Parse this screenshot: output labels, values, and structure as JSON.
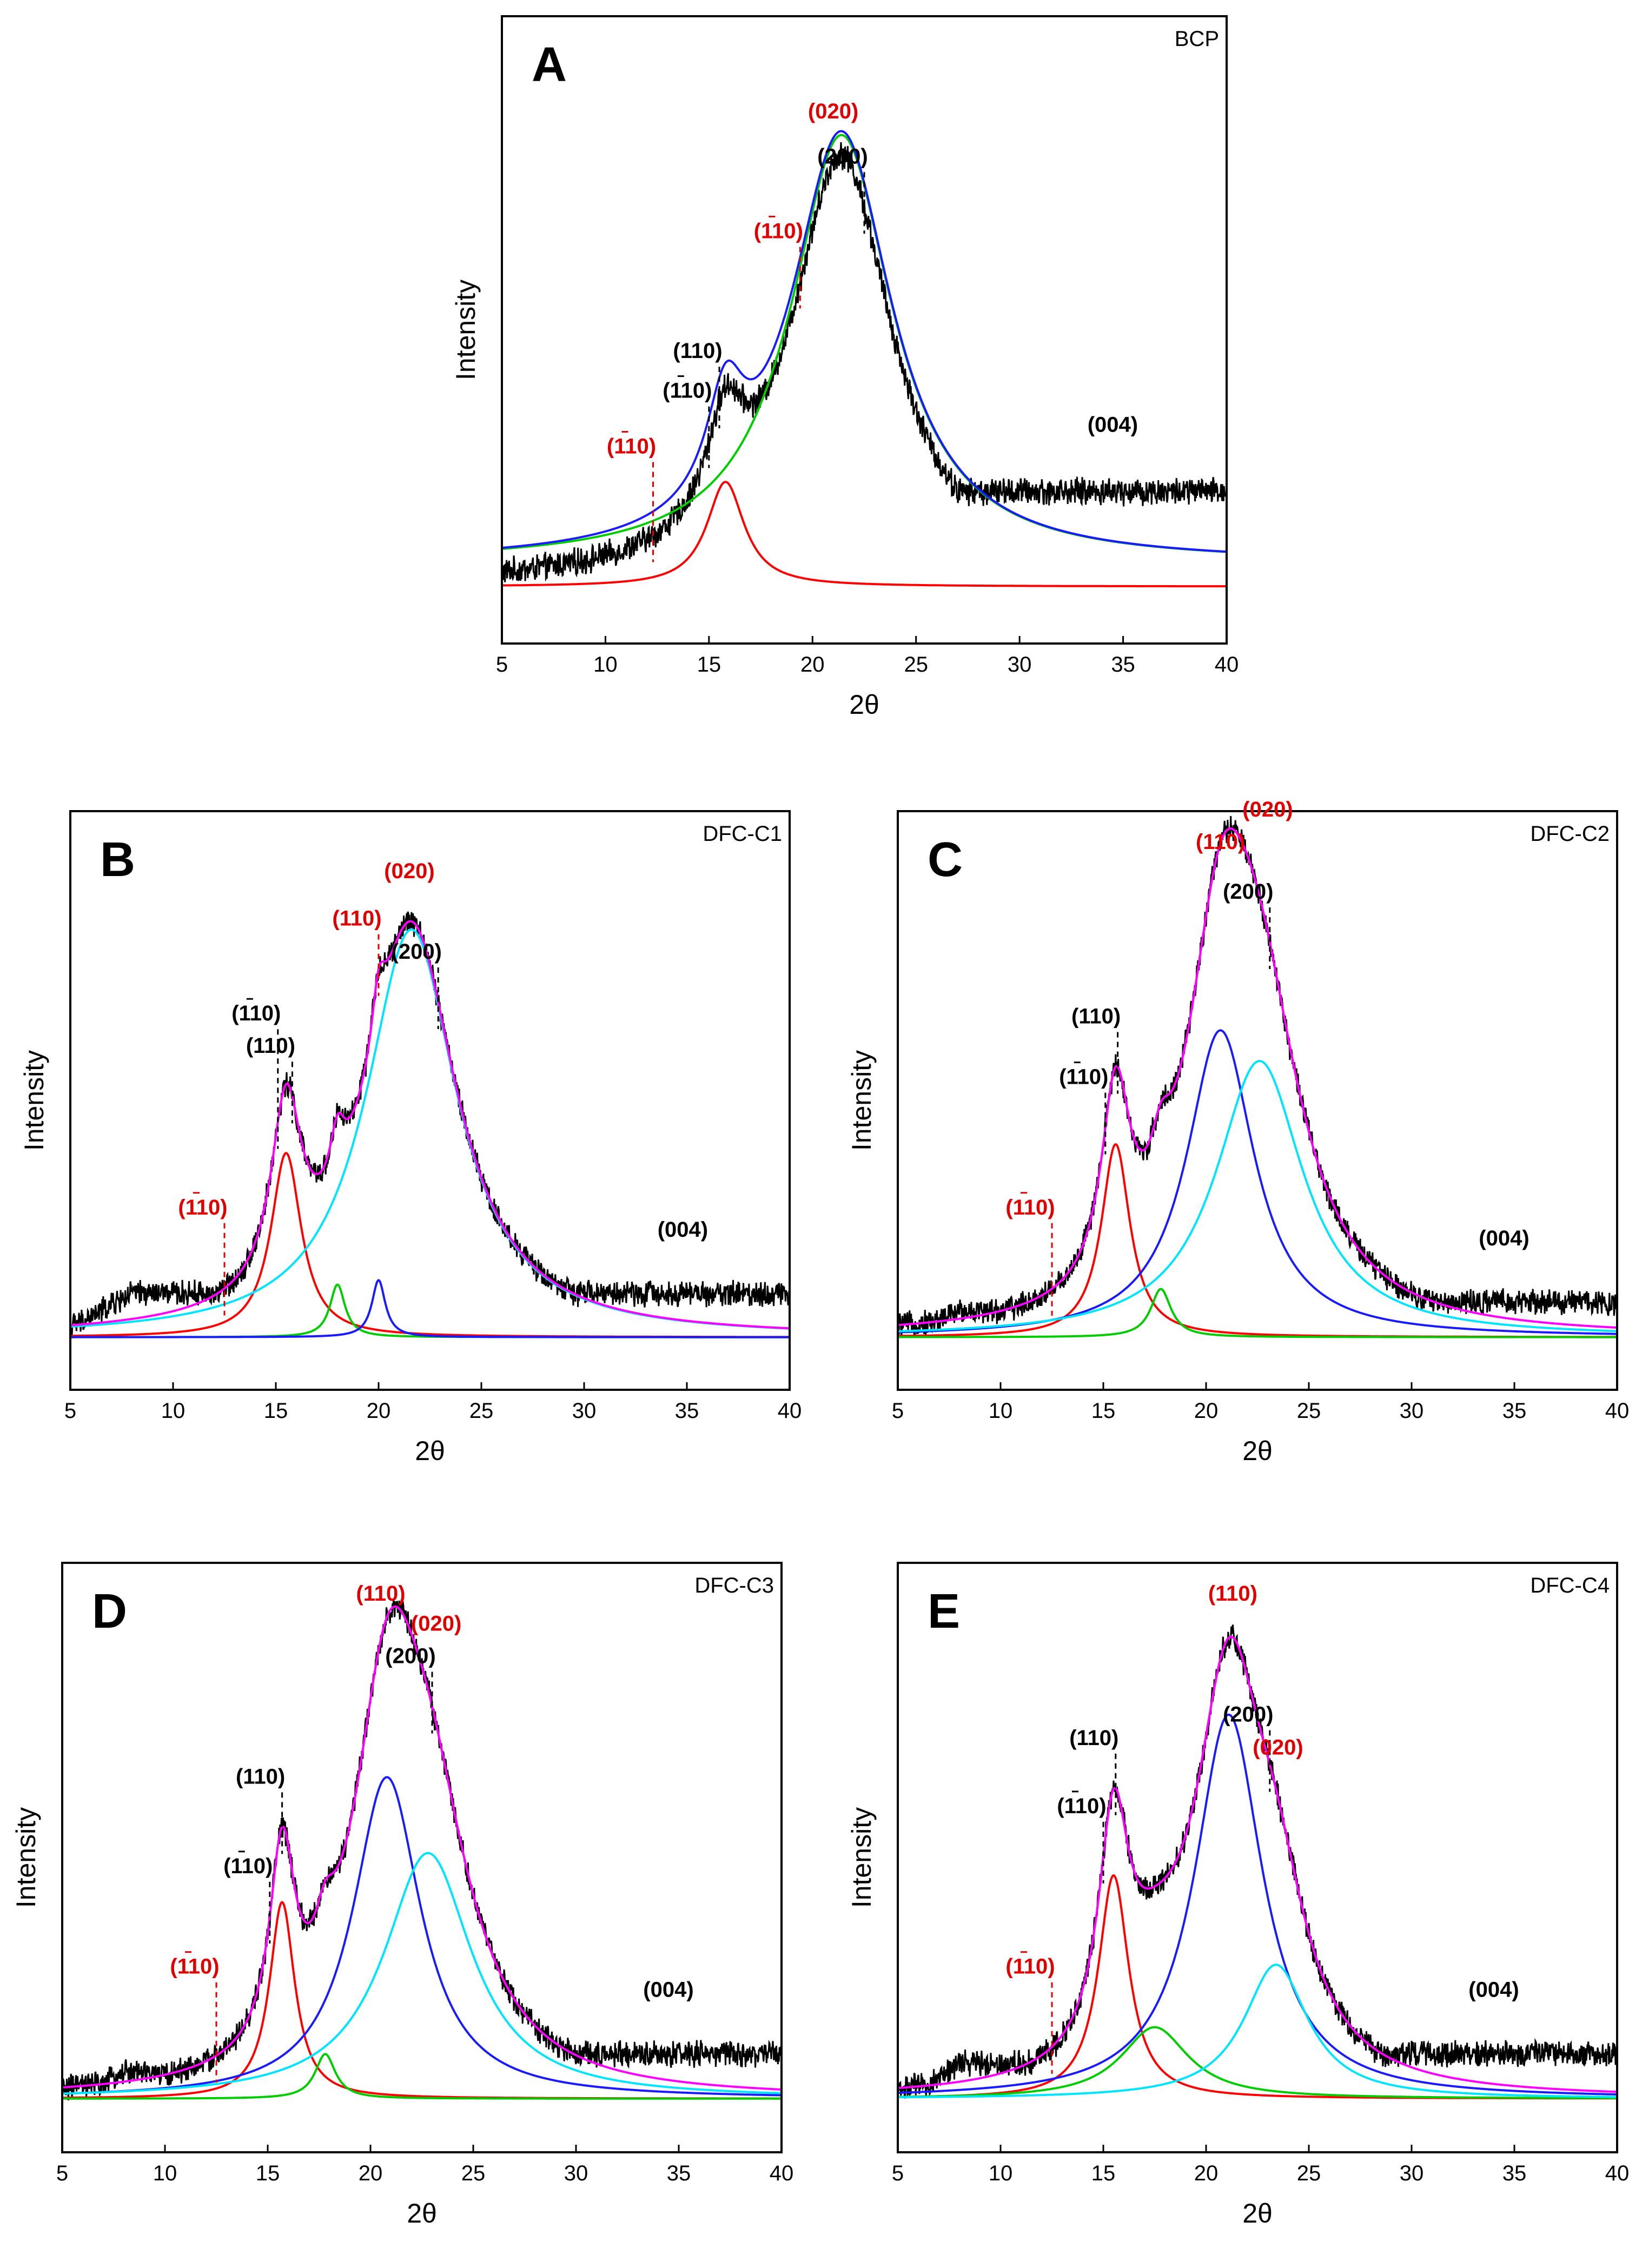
{
  "figure": {
    "colors": {
      "experimental": "#000000",
      "total_fit": "#ff00ff",
      "red": "#ff0000",
      "green": "#00cc00",
      "blue": "#1a1aff",
      "cyan": "#00e5ff",
      "label_black": "#000000",
      "label_red": "#e00000"
    }
  },
  "chart_data": [
    {
      "type": "line",
      "panel": "A",
      "sample": "BCP",
      "xlabel": "2θ",
      "ylabel": "Intensity",
      "xlim": [
        5,
        40
      ],
      "xticks": [
        5,
        10,
        15,
        20,
        25,
        30,
        35,
        40
      ],
      "ylim": [
        -0.12,
        1.2
      ],
      "baseline": [
        [
          5,
          0.0
        ],
        [
          8,
          -0.04
        ],
        [
          12,
          0.08
        ],
        [
          15,
          0.2
        ]
      ],
      "noise": 0.025,
      "components": [
        {
          "name": "red",
          "center": 15.8,
          "height": 0.22,
          "hwhm": 1.1,
          "offset": 0.0
        },
        {
          "name": "green",
          "center": 21.4,
          "height": 0.9,
          "hwhm": 3.0,
          "offset": 0.05
        }
      ],
      "envelope": "blue",
      "has_total": false,
      "peak_labels": [
        {
          "text": "(200)",
          "color": "black",
          "x": 22.5,
          "line": true
        },
        {
          "text": "(020)",
          "color": "red",
          "x": 21.0,
          "line": false
        },
        {
          "text": "(110)",
          "color": "red",
          "x": 19.4,
          "line": true,
          "bar": true
        },
        {
          "text": "(110)",
          "color": "black",
          "x": 15.5,
          "line": true
        },
        {
          "text": "(110)",
          "color": "black",
          "x": 15.0,
          "line": true,
          "bar": true
        },
        {
          "text": "(110)",
          "color": "red",
          "x": 12.3,
          "line": true,
          "bar": true
        },
        {
          "text": "(004)",
          "color": "black",
          "x": 34.5,
          "line": false
        }
      ]
    },
    {
      "type": "line",
      "panel": "B",
      "sample": "DFC-C1",
      "xlabel": "2θ",
      "ylabel": "Intensity",
      "xlim": [
        5,
        40
      ],
      "xticks": [
        5,
        10,
        15,
        20,
        25,
        30,
        35,
        40
      ],
      "ylim": [
        -0.12,
        1.2
      ],
      "baseline": [
        [
          5,
          0.02
        ],
        [
          8,
          0.1
        ],
        [
          12,
          0.1
        ],
        [
          15,
          0.1
        ]
      ],
      "noise": 0.025,
      "components": [
        {
          "name": "red",
          "center": 15.5,
          "height": 0.42,
          "hwhm": 0.9,
          "offset": 0.0
        },
        {
          "name": "green",
          "center": 18.0,
          "height": 0.12,
          "hwhm": 0.45,
          "offset": 0.0
        },
        {
          "name": "blue",
          "center": 20.0,
          "height": 0.13,
          "hwhm": 0.4,
          "offset": 0.0
        },
        {
          "name": "cyan",
          "center": 21.6,
          "height": 0.93,
          "hwhm": 2.7,
          "offset": 0.0
        }
      ],
      "has_total": true,
      "peak_labels": [
        {
          "text": "(200)",
          "color": "black",
          "x": 22.9,
          "line": true
        },
        {
          "text": "(020)",
          "color": "red",
          "x": 21.5,
          "line": false
        },
        {
          "text": "(110)",
          "color": "black",
          "x": 15.8,
          "line": true
        },
        {
          "text": "(110)",
          "color": "black",
          "x": 15.1,
          "line": true,
          "bar": true
        },
        {
          "text": "(110)",
          "color": "red",
          "x": 20.0,
          "line": true
        },
        {
          "text": "(110)",
          "color": "red",
          "x": 12.5,
          "line": true,
          "bar": true
        },
        {
          "text": "(004)",
          "color": "black",
          "x": 34.8,
          "line": false
        }
      ]
    },
    {
      "type": "line",
      "panel": "C",
      "sample": "DFC-C2",
      "xlabel": "2θ",
      "ylabel": "Intensity",
      "xlim": [
        5,
        40
      ],
      "xticks": [
        5,
        10,
        15,
        20,
        25,
        30,
        35,
        40
      ],
      "ylim": [
        -0.12,
        1.2
      ],
      "baseline": [
        [
          5,
          0.0
        ],
        [
          8,
          0.06
        ],
        [
          12,
          0.06
        ],
        [
          15,
          0.08
        ]
      ],
      "noise": 0.025,
      "components": [
        {
          "name": "red",
          "center": 15.6,
          "height": 0.44,
          "hwhm": 0.85,
          "offset": 0.0
        },
        {
          "name": "green",
          "center": 17.8,
          "height": 0.11,
          "hwhm": 0.6,
          "offset": 0.0
        },
        {
          "name": "blue",
          "center": 20.7,
          "height": 0.7,
          "hwhm": 2.0,
          "offset": 0.0
        },
        {
          "name": "cyan",
          "center": 22.6,
          "height": 0.63,
          "hwhm": 2.6,
          "offset": 0.0
        }
      ],
      "has_total": true,
      "peak_labels": [
        {
          "text": "(200)",
          "color": "black",
          "x": 23.1,
          "line": true
        },
        {
          "text": "(110)",
          "color": "black",
          "x": 15.7,
          "line": true
        },
        {
          "text": "(110)",
          "color": "black",
          "x": 15.1,
          "line": true,
          "bar": true
        },
        {
          "text": "(110)",
          "color": "red",
          "x": 20.7,
          "line": false
        },
        {
          "text": "(020)",
          "color": "red",
          "x": 23.0,
          "line": false
        },
        {
          "text": "(110)",
          "color": "red",
          "x": 12.5,
          "line": true,
          "bar": true
        },
        {
          "text": "(004)",
          "color": "black",
          "x": 34.5,
          "line": false
        }
      ]
    },
    {
      "type": "line",
      "panel": "D",
      "sample": "DFC-C3",
      "xlabel": "2θ",
      "ylabel": "Intensity",
      "xlim": [
        5,
        40
      ],
      "xticks": [
        5,
        10,
        15,
        20,
        25,
        30,
        35,
        40
      ],
      "ylim": [
        -0.12,
        1.2
      ],
      "baseline": [
        [
          5,
          -0.02
        ],
        [
          8,
          0.06
        ],
        [
          12,
          0.05
        ],
        [
          15,
          0.1
        ]
      ],
      "noise": 0.025,
      "components": [
        {
          "name": "red",
          "center": 15.7,
          "height": 0.44,
          "hwhm": 0.75,
          "offset": 0.0
        },
        {
          "name": "green",
          "center": 17.8,
          "height": 0.1,
          "hwhm": 0.6,
          "offset": 0.0
        },
        {
          "name": "blue",
          "center": 20.8,
          "height": 0.72,
          "hwhm": 2.0,
          "offset": 0.0
        },
        {
          "name": "cyan",
          "center": 22.8,
          "height": 0.55,
          "hwhm": 2.6,
          "offset": 0.0
        }
      ],
      "has_total": true,
      "peak_labels": [
        {
          "text": "(200)",
          "color": "black",
          "x": 23.0,
          "line": true
        },
        {
          "text": "(110)",
          "color": "black",
          "x": 15.7,
          "line": true
        },
        {
          "text": "(110)",
          "color": "black",
          "x": 15.1,
          "line": true,
          "bar": true
        },
        {
          "text": "(110)",
          "color": "red",
          "x": 20.5,
          "line": false
        },
        {
          "text": "(020)",
          "color": "red",
          "x": 23.2,
          "line": false
        },
        {
          "text": "(110)",
          "color": "red",
          "x": 12.5,
          "line": true,
          "bar": true
        },
        {
          "text": "(004)",
          "color": "black",
          "x": 34.5,
          "line": false
        }
      ]
    },
    {
      "type": "line",
      "panel": "E",
      "sample": "DFC-C4",
      "xlabel": "2θ",
      "ylabel": "Intensity",
      "xlim": [
        5,
        40
      ],
      "xticks": [
        5,
        10,
        15,
        20,
        25,
        30,
        35,
        40
      ],
      "ylim": [
        -0.12,
        1.2
      ],
      "baseline": [
        [
          5,
          -0.02
        ],
        [
          8,
          0.08
        ],
        [
          12,
          0.08
        ],
        [
          15,
          0.1
        ]
      ],
      "noise": 0.025,
      "components": [
        {
          "name": "red",
          "center": 15.5,
          "height": 0.5,
          "hwhm": 0.9,
          "offset": 0.0
        },
        {
          "name": "green",
          "center": 17.5,
          "height": 0.16,
          "hwhm": 2.0,
          "offset": 0.0
        },
        {
          "name": "blue",
          "center": 21.1,
          "height": 0.86,
          "hwhm": 2.0,
          "offset": 0.0
        },
        {
          "name": "cyan",
          "center": 23.4,
          "height": 0.3,
          "hwhm": 1.9,
          "offset": 0.0
        }
      ],
      "has_total": true,
      "peak_labels": [
        {
          "text": "(200)",
          "color": "black",
          "x": 23.1,
          "line": true
        },
        {
          "text": "(110)",
          "color": "black",
          "x": 15.6,
          "line": true
        },
        {
          "text": "(110)",
          "color": "black",
          "x": 15.0,
          "line": true,
          "bar": true
        },
        {
          "text": "(110)",
          "color": "red",
          "x": 21.3,
          "line": false
        },
        {
          "text": "(020)",
          "color": "red",
          "x": 23.5,
          "line": false
        },
        {
          "text": "(110)",
          "color": "red",
          "x": 12.5,
          "line": true,
          "bar": true
        },
        {
          "text": "(004)",
          "color": "black",
          "x": 34.0,
          "line": false
        }
      ]
    }
  ]
}
